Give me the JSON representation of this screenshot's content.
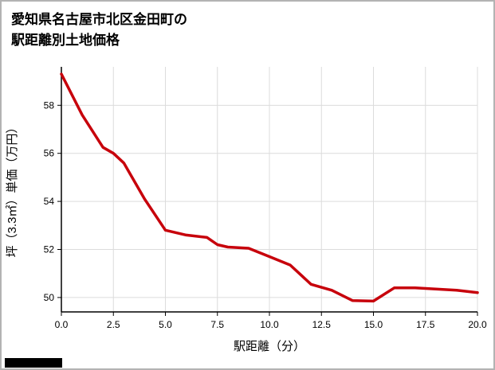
{
  "title": {
    "line1": "愛知県名古屋市北区金田町の",
    "line2": "駅距離別土地価格"
  },
  "chart_data": {
    "type": "line",
    "title": "愛知県名古屋市北区金田町の駅距離別土地価格",
    "xlabel": "駅距離（分）",
    "ylabel": "坪（3.3㎡）単価（万円）",
    "xlim": [
      0,
      20
    ],
    "ylim": [
      49.4,
      59.6
    ],
    "x_ticks": [
      0,
      2.5,
      5,
      7.5,
      10,
      12.5,
      15,
      17.5,
      20
    ],
    "x_tick_labels": [
      "0.0",
      "2.5",
      "5.0",
      "7.5",
      "10.0",
      "12.5",
      "15.0",
      "17.5",
      "20.0"
    ],
    "y_ticks": [
      50,
      52,
      54,
      56,
      58
    ],
    "grid": true,
    "legend": "none",
    "line_color": "#c7000b",
    "series_name": "坪単価（万円）",
    "points": [
      [
        0,
        59.3
      ],
      [
        1,
        57.6
      ],
      [
        2,
        56.25
      ],
      [
        2.5,
        56.0
      ],
      [
        3,
        55.6
      ],
      [
        4,
        54.1
      ],
      [
        5,
        52.8
      ],
      [
        6,
        52.6
      ],
      [
        7,
        52.5
      ],
      [
        7.5,
        52.2
      ],
      [
        8,
        52.1
      ],
      [
        9,
        52.05
      ],
      [
        10,
        51.7
      ],
      [
        11,
        51.35
      ],
      [
        12,
        50.55
      ],
      [
        13,
        50.3
      ],
      [
        14,
        49.87
      ],
      [
        15,
        49.85
      ],
      [
        16,
        50.4
      ],
      [
        17,
        50.4
      ],
      [
        18,
        50.35
      ],
      [
        19,
        50.3
      ],
      [
        20,
        50.2
      ]
    ]
  },
  "decor": {
    "bottom_left_bar_color": "#000000"
  }
}
